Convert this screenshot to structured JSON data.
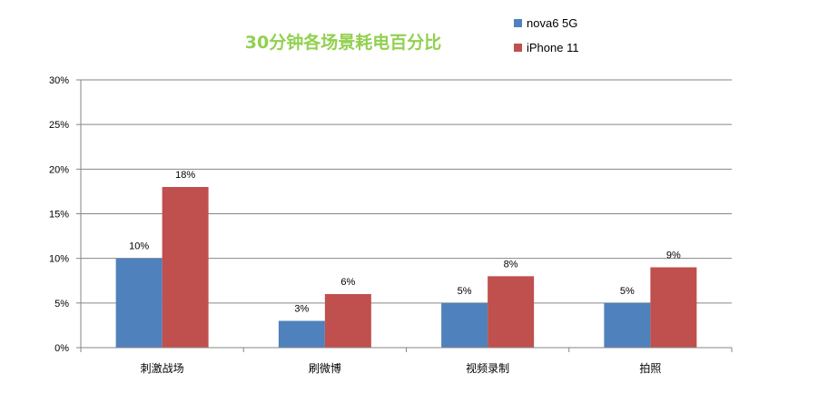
{
  "chart_data": {
    "type": "bar",
    "title": "30分钟各场景耗电百分比",
    "title_color": "#92d050",
    "categories": [
      "刺激战场",
      "刷微博",
      "视频录制",
      "拍照"
    ],
    "series": [
      {
        "name": "nova6 5G",
        "values": [
          10,
          3,
          5,
          5
        ],
        "labels": [
          "10%",
          "3%",
          "5%",
          "5%"
        ],
        "color": "#4f81bd"
      },
      {
        "name": "iPhone 11",
        "values": [
          18,
          6,
          8,
          9
        ],
        "labels": [
          "18%",
          "6%",
          "8%",
          "9%"
        ],
        "color": "#c0504d"
      }
    ],
    "ylim": [
      0,
      30
    ],
    "yticks": [
      0,
      5,
      10,
      15,
      20,
      25,
      30
    ],
    "ytick_labels": [
      "0%",
      "5%",
      "10%",
      "15%",
      "20%",
      "25%",
      "30%"
    ],
    "xlabel": "",
    "ylabel": "",
    "grid": true,
    "legend_position": "top-right"
  }
}
